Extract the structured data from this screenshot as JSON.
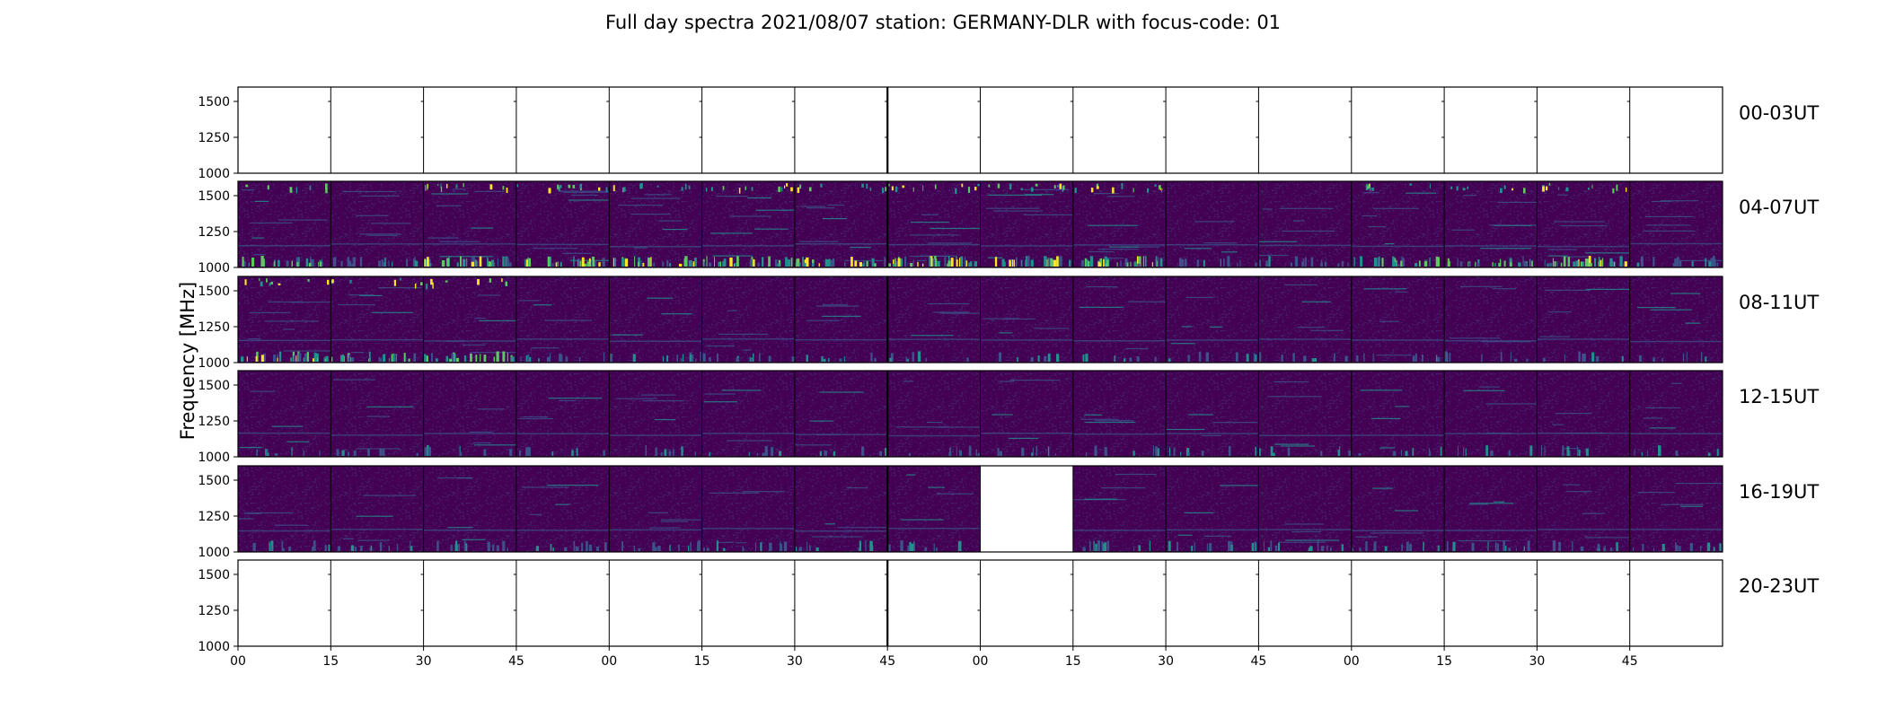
{
  "chart_data": {
    "type": "heatmap",
    "title": "Full day spectra 2021/08/07 station: GERMANY-DLR with focus-code: 01",
    "ylabel": "Frequency [MHz]",
    "ylim": [
      1000,
      1600
    ],
    "yticks": [
      "1000",
      "1250",
      "1500"
    ],
    "xticks": [
      "00",
      "15",
      "30",
      "45",
      "00",
      "15",
      "30",
      "45",
      "00",
      "15",
      "30",
      "45",
      "00",
      "15",
      "30",
      "45"
    ],
    "segments_per_row": 16,
    "colormap": [
      "#440154",
      "#3b528b",
      "#21918c",
      "#5ec962",
      "#fde725"
    ],
    "rows": [
      {
        "label": "00-03UT",
        "has_data": [
          0,
          0,
          0,
          0,
          0,
          0,
          0,
          0,
          0,
          0,
          0,
          0,
          0,
          0,
          0,
          0
        ],
        "activity": [
          0,
          0,
          0,
          0,
          0,
          0,
          0,
          0,
          0,
          0,
          0,
          0,
          0,
          0,
          0,
          0
        ]
      },
      {
        "label": "04-07UT",
        "has_data": [
          1,
          1,
          1,
          1,
          1,
          1,
          1,
          1,
          1,
          1,
          1,
          1,
          1,
          1,
          1,
          1
        ],
        "activity": [
          0.6,
          0.5,
          0.9,
          0.8,
          0.7,
          0.8,
          0.7,
          0.9,
          0.8,
          0.9,
          0.3,
          0.5,
          0.6,
          0.6,
          0.8,
          0.5
        ]
      },
      {
        "label": "08-11UT",
        "has_data": [
          1,
          1,
          1,
          1,
          1,
          1,
          1,
          1,
          1,
          1,
          1,
          1,
          1,
          1,
          1,
          1
        ],
        "activity": [
          0.7,
          0.6,
          0.6,
          0.3,
          0.3,
          0.3,
          0.2,
          0.2,
          0.2,
          0.2,
          0.2,
          0.2,
          0.2,
          0.2,
          0.2,
          0.2
        ]
      },
      {
        "label": "12-15UT",
        "has_data": [
          1,
          1,
          1,
          1,
          1,
          1,
          1,
          1,
          1,
          1,
          1,
          1,
          1,
          1,
          1,
          1
        ],
        "activity": [
          0.2,
          0.2,
          0.2,
          0.2,
          0.2,
          0.2,
          0.2,
          0.2,
          0.2,
          0.2,
          0.2,
          0.2,
          0.2,
          0.2,
          0.2,
          0.2
        ]
      },
      {
        "label": "16-19UT",
        "has_data": [
          1,
          1,
          1,
          1,
          1,
          1,
          1,
          1,
          0,
          1,
          1,
          1,
          1,
          1,
          1,
          1
        ],
        "activity": [
          0.3,
          0.3,
          0.3,
          0.3,
          0.3,
          0.3,
          0.3,
          0.3,
          0,
          0.3,
          0.3,
          0.3,
          0.3,
          0.3,
          0.3,
          0.3
        ]
      },
      {
        "label": "20-23UT",
        "has_data": [
          0,
          0,
          0,
          0,
          0,
          0,
          0,
          0,
          0,
          0,
          0,
          0,
          0,
          0,
          0,
          0
        ],
        "activity": [
          0,
          0,
          0,
          0,
          0,
          0,
          0,
          0,
          0,
          0,
          0,
          0,
          0,
          0,
          0,
          0
        ]
      }
    ]
  }
}
